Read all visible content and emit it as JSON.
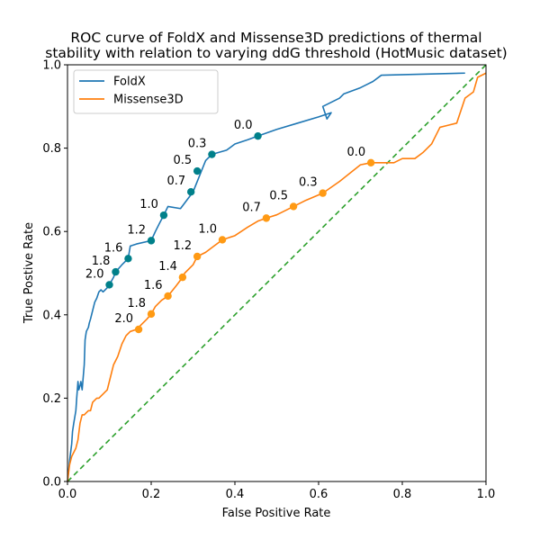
{
  "chart_data": {
    "type": "line",
    "title_lines": [
      "ROC curve of FoldX and Missense3D predictions of thermal",
      "stability with relation to varying ddG threshold (HotMusic dataset)"
    ],
    "xlabel": "False Positive Rate",
    "ylabel": "True Postive Rate",
    "xlim": [
      0,
      1
    ],
    "ylim": [
      0,
      1
    ],
    "xticks": [
      "0.0",
      "0.2",
      "0.4",
      "0.6",
      "0.8",
      "1.0"
    ],
    "yticks": [
      "0.0",
      "0.2",
      "0.4",
      "0.6",
      "0.8",
      "1.0"
    ],
    "grid": false,
    "legend_position": "top-left",
    "series": [
      {
        "name": "FoldX",
        "color": "#1f77b4",
        "marker_color": "#00808a",
        "x": [
          0.0,
          0.005,
          0.01,
          0.012,
          0.015,
          0.02,
          0.022,
          0.025,
          0.027,
          0.03,
          0.032,
          0.035,
          0.04,
          0.042,
          0.045,
          0.05,
          0.052,
          0.055,
          0.06,
          0.065,
          0.07,
          0.075,
          0.08,
          0.085,
          0.09,
          0.095,
          0.1,
          0.11,
          0.115,
          0.13,
          0.145,
          0.15,
          0.165,
          0.2,
          0.21,
          0.22,
          0.23,
          0.24,
          0.27,
          0.3,
          0.31,
          0.32,
          0.33,
          0.345,
          0.38,
          0.4,
          0.43,
          0.455,
          0.5,
          0.55,
          0.6,
          0.63,
          0.62,
          0.61,
          0.63,
          0.65,
          0.66,
          0.7,
          0.72,
          0.73,
          0.75,
          0.95
        ],
        "y": [
          0.0,
          0.05,
          0.09,
          0.12,
          0.14,
          0.17,
          0.2,
          0.24,
          0.22,
          0.23,
          0.24,
          0.22,
          0.28,
          0.34,
          0.36,
          0.37,
          0.38,
          0.39,
          0.41,
          0.43,
          0.44,
          0.455,
          0.46,
          0.455,
          0.46,
          0.465,
          0.472,
          0.49,
          0.503,
          0.52,
          0.535,
          0.565,
          0.57,
          0.578,
          0.6,
          0.62,
          0.639,
          0.66,
          0.655,
          0.695,
          0.72,
          0.745,
          0.77,
          0.785,
          0.795,
          0.81,
          0.82,
          0.829,
          0.845,
          0.86,
          0.875,
          0.885,
          0.87,
          0.9,
          0.91,
          0.92,
          0.93,
          0.945,
          0.955,
          0.96,
          0.975,
          0.98
        ],
        "annotated_points": [
          {
            "x": 0.455,
            "y": 0.829,
            "label": "0.0"
          },
          {
            "x": 0.345,
            "y": 0.785,
            "label": "0.3"
          },
          {
            "x": 0.31,
            "y": 0.745,
            "label": "0.5"
          },
          {
            "x": 0.295,
            "y": 0.695,
            "label": "0.7"
          },
          {
            "x": 0.23,
            "y": 0.639,
            "label": "1.0"
          },
          {
            "x": 0.2,
            "y": 0.578,
            "label": "1.2"
          },
          {
            "x": 0.145,
            "y": 0.535,
            "label": "1.6"
          },
          {
            "x": 0.115,
            "y": 0.503,
            "label": "1.8"
          },
          {
            "x": 0.1,
            "y": 0.472,
            "label": "2.0"
          }
        ]
      },
      {
        "name": "Missense3D",
        "color": "#ff7f0e",
        "marker_color": "#ff9a14",
        "x": [
          0.0,
          0.005,
          0.01,
          0.015,
          0.02,
          0.025,
          0.03,
          0.035,
          0.04,
          0.045,
          0.05,
          0.055,
          0.06,
          0.065,
          0.07,
          0.075,
          0.08,
          0.085,
          0.09,
          0.095,
          0.1,
          0.105,
          0.11,
          0.12,
          0.13,
          0.14,
          0.15,
          0.165,
          0.17,
          0.18,
          0.19,
          0.2,
          0.21,
          0.225,
          0.24,
          0.26,
          0.275,
          0.28,
          0.3,
          0.31,
          0.33,
          0.35,
          0.37,
          0.4,
          0.43,
          0.455,
          0.475,
          0.5,
          0.54,
          0.57,
          0.61,
          0.65,
          0.7,
          0.725,
          0.78,
          0.8,
          0.83,
          0.85,
          0.87,
          0.89,
          0.91,
          0.93,
          0.95,
          0.97,
          0.98,
          1.0
        ],
        "y": [
          0.0,
          0.04,
          0.06,
          0.07,
          0.08,
          0.1,
          0.14,
          0.16,
          0.16,
          0.165,
          0.17,
          0.17,
          0.19,
          0.195,
          0.2,
          0.2,
          0.205,
          0.21,
          0.215,
          0.22,
          0.24,
          0.26,
          0.28,
          0.3,
          0.33,
          0.35,
          0.36,
          0.365,
          0.37,
          0.38,
          0.39,
          0.402,
          0.42,
          0.435,
          0.445,
          0.47,
          0.49,
          0.5,
          0.52,
          0.54,
          0.55,
          0.565,
          0.58,
          0.59,
          0.61,
          0.625,
          0.632,
          0.64,
          0.66,
          0.675,
          0.692,
          0.72,
          0.76,
          0.765,
          0.765,
          0.775,
          0.775,
          0.79,
          0.81,
          0.85,
          0.855,
          0.86,
          0.92,
          0.935,
          0.97,
          0.98
        ],
        "annotated_points": [
          {
            "x": 0.725,
            "y": 0.765,
            "label": "0.0"
          },
          {
            "x": 0.61,
            "y": 0.692,
            "label": "0.3"
          },
          {
            "x": 0.54,
            "y": 0.66,
            "label": "0.5"
          },
          {
            "x": 0.475,
            "y": 0.632,
            "label": "0.7"
          },
          {
            "x": 0.37,
            "y": 0.58,
            "label": "1.0"
          },
          {
            "x": 0.31,
            "y": 0.54,
            "label": "1.2"
          },
          {
            "x": 0.275,
            "y": 0.49,
            "label": "1.4"
          },
          {
            "x": 0.24,
            "y": 0.445,
            "label": "1.6"
          },
          {
            "x": 0.2,
            "y": 0.402,
            "label": "1.8"
          },
          {
            "x": 0.17,
            "y": 0.365,
            "label": "2.0"
          }
        ]
      },
      {
        "color": "#2ca02c",
        "style": "dashed",
        "x": [
          0,
          1
        ],
        "y": [
          0,
          1
        ]
      }
    ]
  }
}
